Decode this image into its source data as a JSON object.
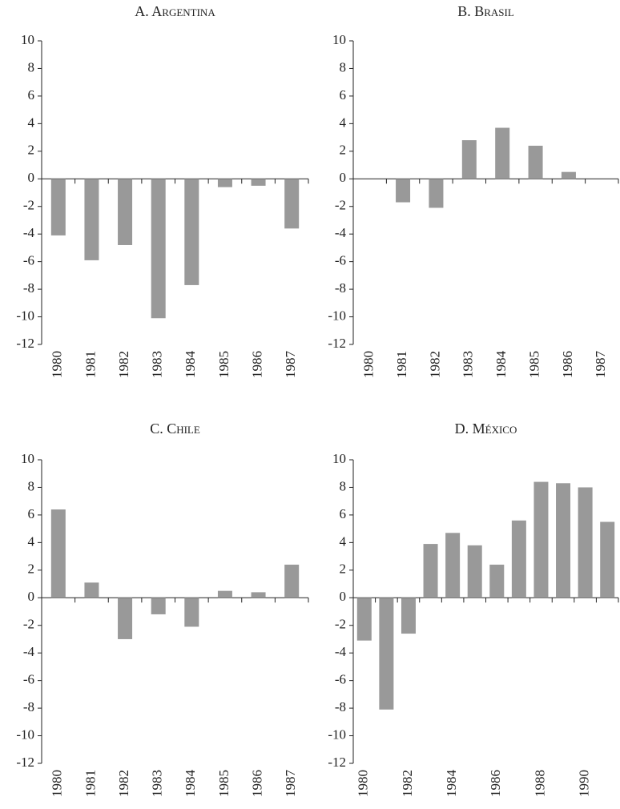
{
  "chart_data": [
    {
      "type": "bar",
      "title": "A. Argentina",
      "color": "#999999",
      "categories": [
        "1980",
        "1981",
        "1982",
        "1983",
        "1984",
        "1985",
        "1986",
        "1987"
      ],
      "values": [
        -4.1,
        -5.9,
        -4.8,
        -10.1,
        -7.7,
        -0.6,
        -0.5,
        -3.6
      ],
      "ylim": [
        -12,
        10
      ],
      "yticks": [
        -12,
        -10,
        -8,
        -6,
        -4,
        -2,
        0,
        2,
        4,
        6,
        8,
        10
      ]
    },
    {
      "type": "bar",
      "title": "B. Brasil",
      "color": "#999999",
      "categories": [
        "1980",
        "1981",
        "1982",
        "1983",
        "1984",
        "1985",
        "1986",
        "1987"
      ],
      "values": [
        null,
        -1.7,
        -2.1,
        2.8,
        3.7,
        2.4,
        0.5,
        null
      ],
      "ylim": [
        -12,
        10
      ],
      "yticks": [
        -12,
        -10,
        -8,
        -6,
        -4,
        -2,
        0,
        2,
        4,
        6,
        8,
        10
      ]
    },
    {
      "type": "bar",
      "title": "C. Chile",
      "color": "#999999",
      "categories": [
        "1980",
        "1981",
        "1982",
        "1983",
        "1984",
        "1985",
        "1986",
        "1987"
      ],
      "values": [
        6.4,
        1.1,
        -3.0,
        -1.2,
        -2.1,
        0.5,
        0.4,
        2.4
      ],
      "ylim": [
        -12,
        10
      ],
      "yticks": [
        -12,
        -10,
        -8,
        -6,
        -4,
        -2,
        0,
        2,
        4,
        6,
        8,
        10
      ]
    },
    {
      "type": "bar",
      "title": "D. México",
      "color": "#999999",
      "categories": [
        "1980",
        null,
        "1982",
        null,
        "1984",
        null,
        "1986",
        null,
        "1988",
        null,
        "1990",
        null
      ],
      "values": [
        -3.1,
        -8.1,
        -2.6,
        3.9,
        4.7,
        3.8,
        2.4,
        5.6,
        8.4,
        8.3,
        8.0,
        5.5
      ],
      "ylim": [
        -12,
        10
      ],
      "yticks": [
        -12,
        -10,
        -8,
        -6,
        -4,
        -2,
        0,
        2,
        4,
        6,
        8,
        10
      ]
    }
  ]
}
